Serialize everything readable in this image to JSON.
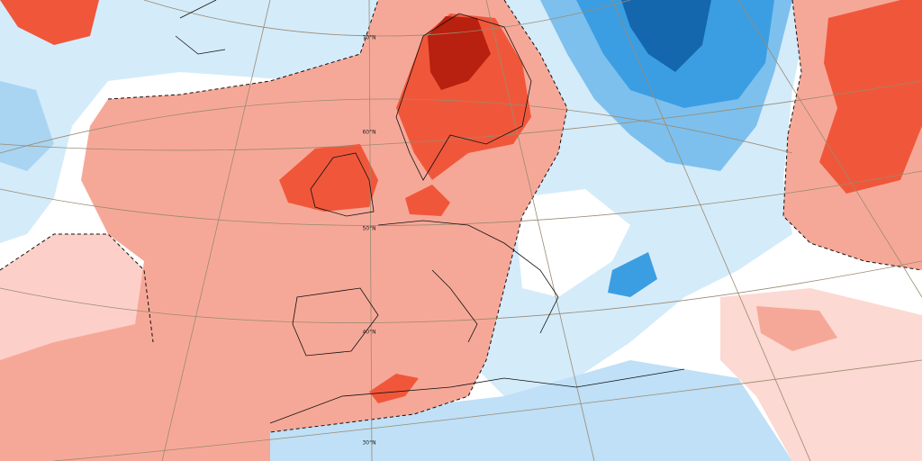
{
  "lat_labels": [
    "70°N",
    "60°N",
    "50°N",
    "40°N",
    "30°N"
  ]
}
